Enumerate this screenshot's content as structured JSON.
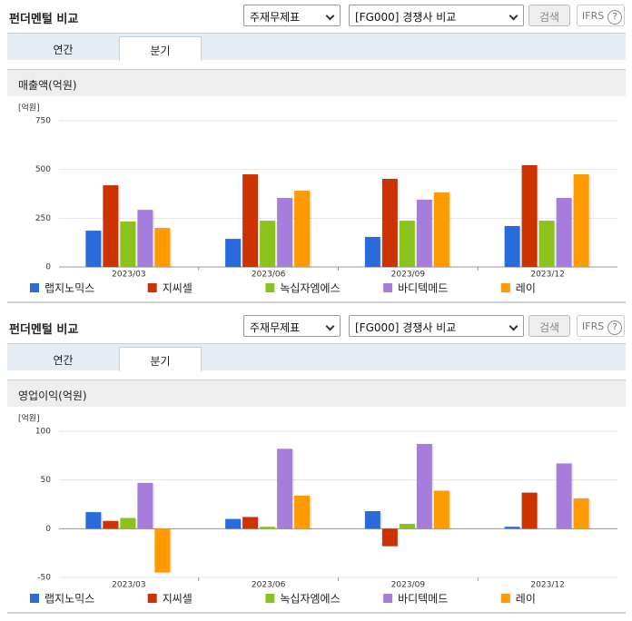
{
  "panels": [
    {
      "title": "펀더멘털 비교",
      "statement_select": "주재무제표",
      "compare_select": "[FG000] 경쟁사 비교",
      "search_button": "검색",
      "ifrs": "IFRS",
      "help": "?",
      "tabs": [
        "연간",
        "분기"
      ]
    },
    {
      "title": "펀더멘털 비교",
      "statement_select": "주재무제표",
      "compare_select": "[FG000] 경쟁사 비교",
      "search_button": "검색",
      "ifrs": "IFRS",
      "help": "?",
      "tabs": [
        "연간",
        "분기"
      ]
    }
  ],
  "chart_data": [
    {
      "type": "bar",
      "title": "매출액(억원)",
      "y_label": "[억원]",
      "categories": [
        "2023/03",
        "2023/06",
        "2023/09",
        "2023/12"
      ],
      "series": [
        {
          "name": "랩지노믹스",
          "color": "#2a6bdc",
          "values": [
            186,
            144,
            154,
            210
          ]
        },
        {
          "name": "지씨셀",
          "color": "#cc3300",
          "values": [
            419,
            475,
            452,
            522
          ]
        },
        {
          "name": "녹십자엠에스",
          "color": "#8cc21c",
          "values": [
            233,
            237,
            237,
            237
          ]
        },
        {
          "name": "바디텍메드",
          "color": "#a77ddc",
          "values": [
            293,
            354,
            345,
            354
          ]
        },
        {
          "name": "레이",
          "color": "#ff9a00",
          "values": [
            200,
            391,
            382,
            475
          ]
        }
      ],
      "ylim": [
        0,
        750
      ],
      "yticks": [
        0,
        250,
        500,
        750
      ],
      "grid": true
    },
    {
      "type": "bar",
      "title": "영업이익(억원)",
      "y_label": "[억원]",
      "categories": [
        "2023/03",
        "2023/06",
        "2023/09",
        "2023/12"
      ],
      "series": [
        {
          "name": "랩지노믹스",
          "color": "#2a6bdc",
          "values": [
            17,
            10,
            18,
            2
          ]
        },
        {
          "name": "지씨셀",
          "color": "#cc3300",
          "values": [
            8,
            12,
            -18,
            37
          ]
        },
        {
          "name": "녹십자엠에스",
          "color": "#8cc21c",
          "values": [
            11,
            2,
            5,
            0
          ]
        },
        {
          "name": "바디텍메드",
          "color": "#a77ddc",
          "values": [
            47,
            82,
            87,
            67
          ]
        },
        {
          "name": "레이",
          "color": "#ff9a00",
          "values": [
            -45,
            34,
            39,
            31
          ]
        }
      ],
      "ylim": [
        -50,
        100
      ],
      "yticks": [
        -50,
        0,
        50,
        100
      ],
      "grid": true
    }
  ]
}
